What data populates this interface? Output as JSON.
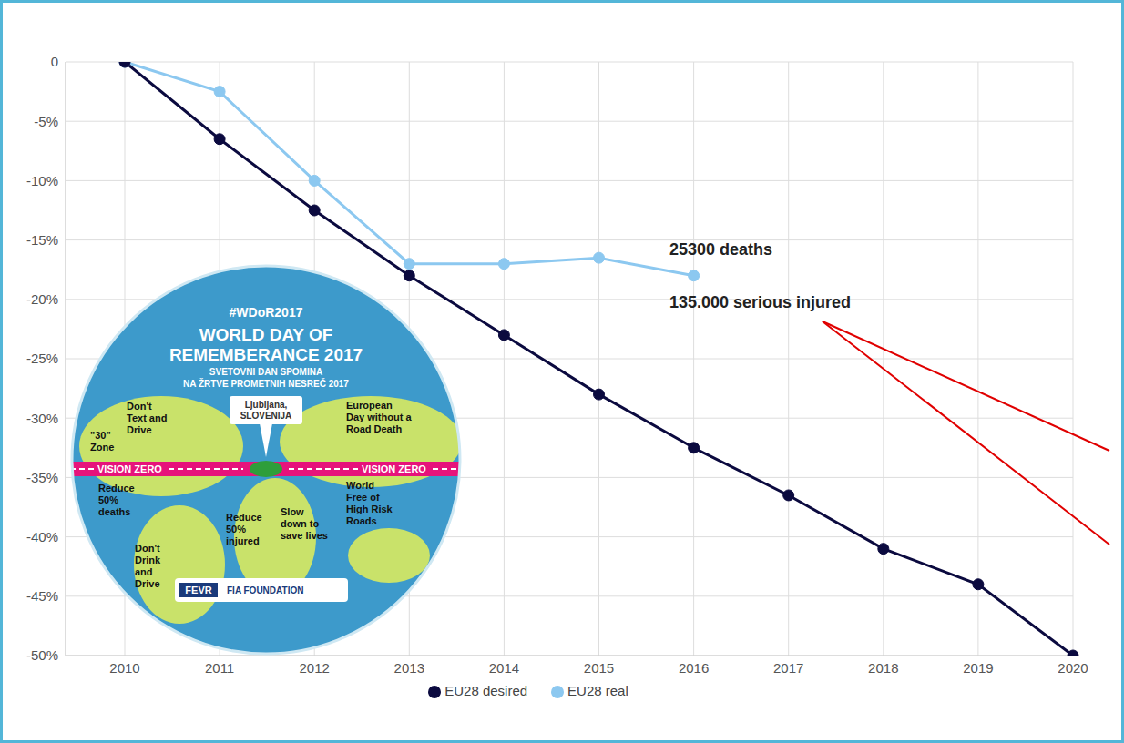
{
  "chart_data": {
    "type": "line",
    "categories": [
      "2010",
      "2011",
      "2012",
      "2013",
      "2014",
      "2015",
      "2016",
      "2017",
      "2018",
      "2019",
      "2020"
    ],
    "series": [
      {
        "name": "EU28 real",
        "color": "#8cc8f0",
        "marker": "circle",
        "values": [
          0,
          -2.5,
          -10,
          -17,
          -17,
          -16.5,
          -18,
          null,
          null,
          null,
          null
        ]
      },
      {
        "name": "EU28 desired",
        "color": "#0b0a3f",
        "marker": "circle",
        "values": [
          0,
          -6.5,
          -12.5,
          -18,
          -23,
          -28,
          -32.5,
          -36.5,
          -41,
          -44,
          -50
        ]
      }
    ],
    "ylim": [
      -50,
      0
    ],
    "yticks": [
      {
        "value": -50,
        "label": "-50%"
      },
      {
        "value": -45,
        "label": "-45%"
      },
      {
        "value": -40,
        "label": "-40%"
      },
      {
        "value": -35,
        "label": "-35%"
      },
      {
        "value": -30,
        "label": "-30%"
      },
      {
        "value": -25,
        "label": "-25%"
      },
      {
        "value": -20,
        "label": "-20%"
      },
      {
        "value": -15,
        "label": "-15%"
      },
      {
        "value": -10,
        "label": "-10%"
      },
      {
        "value": -5,
        "label": "-5%"
      },
      0
    ],
    "grid": true,
    "legend": "bottom",
    "annotations": [
      "25300 deaths",
      "135.000 serious injured"
    ]
  },
  "poster": {
    "hashtag": "#WDoR2017",
    "title": [
      "WORLD DAY OF",
      "REMEMBERANCE 2017"
    ],
    "subtitle": [
      "SVETOVNI DAN SPOMINA",
      "NA ŽRTVE PROMETNIH NESREČ 2017"
    ],
    "place": [
      "Ljubljana,",
      "SLOVENIJA"
    ],
    "band": [
      "VISION ZERO",
      "VISION ZERO"
    ],
    "slogans": [
      [
        "Don't",
        "Text and",
        "Drive"
      ],
      [
        "\"30\"",
        "Zone"
      ],
      [
        "European",
        "Day without a",
        "Road Death"
      ],
      [
        "Reduce",
        "50%",
        "deaths"
      ],
      [
        "World",
        "Free of",
        "High Risk",
        "Roads"
      ],
      [
        "Reduce",
        "50%",
        "injured"
      ],
      [
        "Slow",
        "down to",
        "save lives"
      ],
      [
        "Don't",
        "Drink",
        "and",
        "Drive"
      ]
    ],
    "logos": [
      "FEVR",
      "FIA FOUNDATION"
    ]
  }
}
